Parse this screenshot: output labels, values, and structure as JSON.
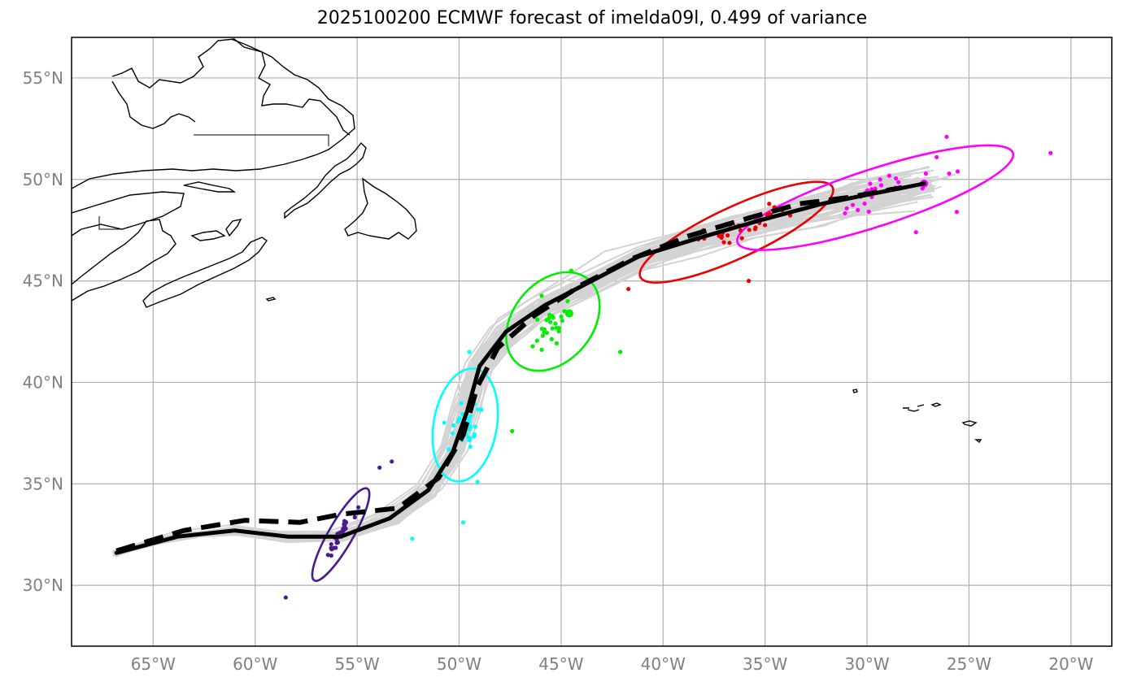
{
  "title": "2025100200 ECMWF forecast of imelda09l, 0.499 of variance",
  "axes": {
    "lon_range": [
      -69,
      -18
    ],
    "lat_range": [
      27,
      57
    ],
    "lon_ticks": [
      {
        "value": -65,
        "label": "65°W"
      },
      {
        "value": -60,
        "label": "60°W"
      },
      {
        "value": -55,
        "label": "55°W"
      },
      {
        "value": -50,
        "label": "50°W"
      },
      {
        "value": -45,
        "label": "45°W"
      },
      {
        "value": -40,
        "label": "40°W"
      },
      {
        "value": -35,
        "label": "35°W"
      },
      {
        "value": -30,
        "label": "30°W"
      },
      {
        "value": -25,
        "label": "25°W"
      },
      {
        "value": -20,
        "label": "20°W"
      }
    ],
    "lat_ticks": [
      {
        "value": 30,
        "label": "30°N"
      },
      {
        "value": 35,
        "label": "35°N"
      },
      {
        "value": 40,
        "label": "40°N"
      },
      {
        "value": 45,
        "label": "45°N"
      },
      {
        "value": 50,
        "label": "50°N"
      },
      {
        "value": 55,
        "label": "55°N"
      }
    ]
  },
  "colors": {
    "ensemble": "#d3d3d3",
    "mean_track": "#000000",
    "grid": "#b0b0b0",
    "tick_label": "#808080",
    "coast": "#000000",
    "groups": [
      "#4b1a8c",
      "#00ffff",
      "#00ee00",
      "#ee0000",
      "#ff00ff"
    ]
  },
  "chart_data": {
    "type": "track-map",
    "title": "2025100200 ECMWF forecast of imelda09l, 0.499 of variance",
    "variance_explained": 0.499,
    "solid_track": [
      [
        -66.8,
        31.6
      ],
      [
        -63.8,
        32.4
      ],
      [
        -61,
        32.7
      ],
      [
        -58.4,
        32.4
      ],
      [
        -55.8,
        32.4
      ],
      [
        -53.4,
        33.3
      ],
      [
        -51.5,
        34.7
      ],
      [
        -50.3,
        36.6
      ],
      [
        -49.6,
        38.6
      ],
      [
        -49,
        40.8
      ],
      [
        -47.7,
        42.5
      ],
      [
        -45.8,
        43.8
      ],
      [
        -43.5,
        45
      ],
      [
        -41.2,
        46.2
      ],
      [
        -38.3,
        47.1
      ],
      [
        -35.2,
        48
      ],
      [
        -32.2,
        48.8
      ],
      [
        -30.2,
        49.2
      ],
      [
        -27.2,
        49.8
      ]
    ],
    "dashed_track": [
      [
        -66.8,
        31.7
      ],
      [
        -63.5,
        32.7
      ],
      [
        -60.5,
        33.2
      ],
      [
        -57.8,
        33.1
      ],
      [
        -55.8,
        33.5
      ],
      [
        -53,
        33.8
      ],
      [
        -51,
        35.3
      ],
      [
        -49.8,
        37.4
      ],
      [
        -49.1,
        39.8
      ],
      [
        -48.1,
        41.7
      ],
      [
        -46.3,
        43.3
      ],
      [
        -44,
        44.8
      ],
      [
        -41.5,
        46.1
      ],
      [
        -38.8,
        47.2
      ],
      [
        -35.8,
        48.1
      ],
      [
        -33.3,
        48.8
      ],
      [
        -31,
        49.1
      ],
      [
        -28.3,
        49.6
      ]
    ],
    "ellipses": [
      {
        "color": "#4b1a8c",
        "center": [
          -55.8,
          32.5
        ],
        "semi_axis_major_deg": 2.6,
        "semi_axis_minor_deg": 0.6,
        "angle_deg": 60
      },
      {
        "color": "#00ffff",
        "center": [
          -49.7,
          37.9
        ],
        "semi_axis_major_deg": 2.8,
        "semi_axis_minor_deg": 1.55,
        "angle_deg": 80
      },
      {
        "color": "#00ee00",
        "center": [
          -45.4,
          43
        ],
        "semi_axis_major_deg": 2.7,
        "semi_axis_minor_deg": 1.95,
        "angle_deg": 50
      },
      {
        "color": "#ee0000",
        "center": [
          -36.4,
          47.4
        ],
        "semi_axis_major_deg": 5.2,
        "semi_axis_minor_deg": 1.25,
        "angle_deg": 25
      },
      {
        "color": "#ff00ff",
        "center": [
          -29.6,
          49.1
        ],
        "semi_axis_major_deg": 7.1,
        "semi_axis_minor_deg": 1.4,
        "angle_deg": 18
      }
    ],
    "group_means": [
      {
        "color": "#4b1a8c",
        "lon": -55.8,
        "lat": 32.5
      },
      {
        "color": "#00ffff",
        "lon": -49.6,
        "lat": 38.1
      },
      {
        "color": "#00ee00",
        "lon": -44.6,
        "lat": 43.4
      },
      {
        "color": "#ee0000",
        "lon": -34.8,
        "lat": 48.2
      },
      {
        "color": "#ff00ff",
        "lon": -27.2,
        "lat": 49.8
      }
    ],
    "outlier_points": [
      {
        "color": "#4b1a8c",
        "lon": -58.5,
        "lat": 29.4
      },
      {
        "color": "#4b1a8c",
        "lon": -53.9,
        "lat": 35.8
      },
      {
        "color": "#4b1a8c",
        "lon": -53.3,
        "lat": 36.1
      },
      {
        "color": "#00ffff",
        "lon": -49.8,
        "lat": 33.1
      },
      {
        "color": "#00ffff",
        "lon": -52.3,
        "lat": 32.3
      },
      {
        "color": "#00ffff",
        "lon": -49.1,
        "lat": 35.1
      },
      {
        "color": "#00ffff",
        "lon": -49.5,
        "lat": 41.5
      },
      {
        "color": "#00ee00",
        "lon": -47.4,
        "lat": 37.6
      },
      {
        "color": "#00ee00",
        "lon": -42.1,
        "lat": 41.5
      },
      {
        "color": "#00ee00",
        "lon": -44.5,
        "lat": 45.5
      },
      {
        "color": "#ee0000",
        "lon": -35.8,
        "lat": 45
      },
      {
        "color": "#ee0000",
        "lon": -41.7,
        "lat": 44.6
      },
      {
        "color": "#ff00ff",
        "lon": -21,
        "lat": 51.3
      },
      {
        "color": "#ff00ff",
        "lon": -27.6,
        "lat": 47.4
      },
      {
        "color": "#ff00ff",
        "lon": -25.6,
        "lat": 48.4
      },
      {
        "color": "#ff00ff",
        "lon": -26.1,
        "lat": 52.1
      }
    ],
    "ensemble_member_count": 50
  }
}
